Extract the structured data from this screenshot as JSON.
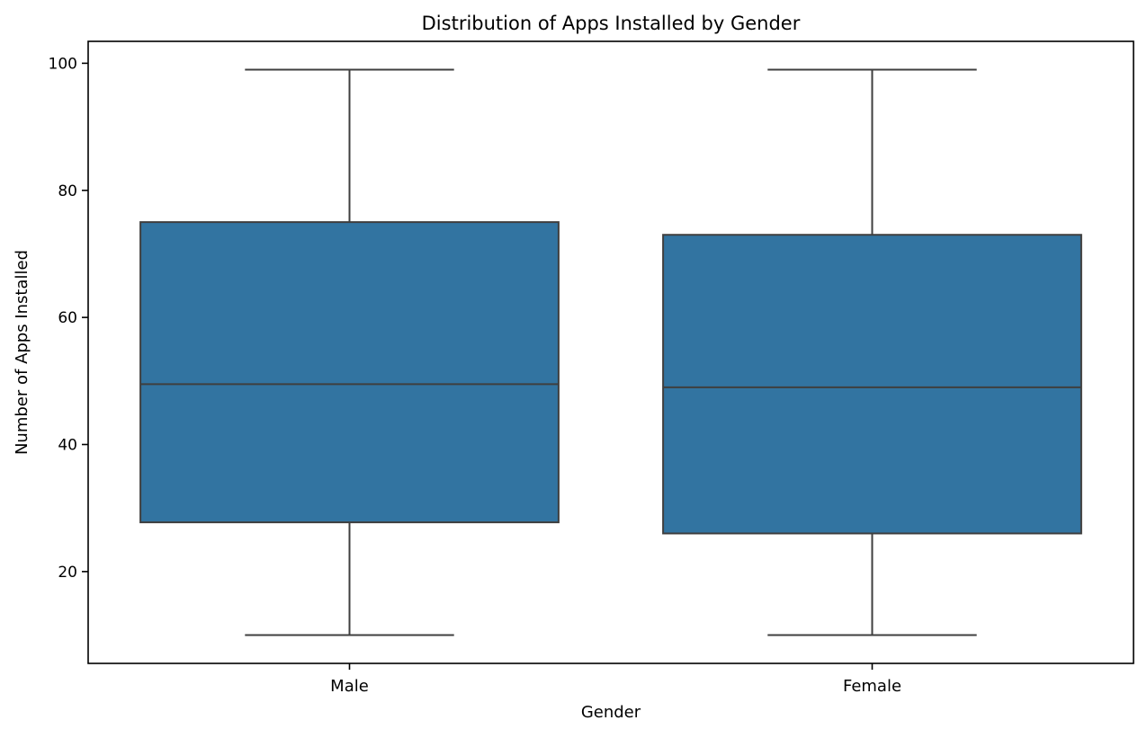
{
  "chart_data": {
    "type": "box",
    "title": "Distribution of Apps Installed by Gender",
    "xlabel": "Gender",
    "ylabel": "Number of Apps Installed",
    "categories": [
      "Male",
      "Female"
    ],
    "boxes": [
      {
        "category": "Male",
        "whisker_low": 10,
        "q1": 27.75,
        "median": 49.5,
        "q3": 75,
        "whisker_high": 99
      },
      {
        "category": "Female",
        "whisker_low": 10,
        "q1": 26,
        "median": 49,
        "q3": 73,
        "whisker_high": 99
      }
    ],
    "ylim": [
      5.55,
      103.45
    ],
    "yticks": [
      20,
      40,
      60,
      80,
      100
    ],
    "grid": false,
    "legend": "none",
    "colors": {
      "box_fill": "#3274a1",
      "line": "#3f3f3f",
      "axis": "#000000"
    }
  }
}
